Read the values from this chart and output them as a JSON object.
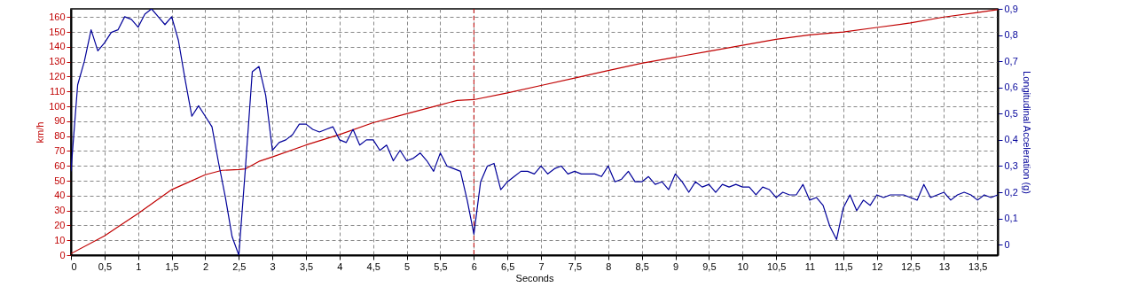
{
  "chart_data": {
    "type": "line",
    "xlabel": "Seconds",
    "ylabel": "km/h",
    "y2label": "Longitudinal Acceleration (g)",
    "grid": true,
    "line_style": "solid",
    "xlim": [
      0,
      13.8
    ],
    "xticks": [
      0,
      {
        "value": 0.5,
        "label": "0,5"
      },
      1,
      {
        "value": 1.5,
        "label": "1,5"
      },
      2,
      {
        "value": 2.5,
        "label": "2,5"
      },
      3,
      {
        "value": 3.5,
        "label": "3,5"
      },
      4,
      {
        "value": 4.5,
        "label": "4,5"
      },
      5,
      {
        "value": 5.5,
        "label": "5,5"
      },
      6,
      {
        "value": 6.5,
        "label": "6,5"
      },
      7,
      {
        "value": 7.5,
        "label": "7,5"
      },
      8,
      {
        "value": 8.5,
        "label": "8,5"
      },
      9,
      {
        "value": 9.5,
        "label": "9,5"
      },
      10,
      {
        "value": 10.5,
        "label": "10,5"
      },
      11,
      {
        "value": 11.5,
        "label": "11,5"
      },
      12,
      {
        "value": 12.5,
        "label": "12,5"
      },
      13,
      {
        "value": 13.5,
        "label": "13,5"
      }
    ],
    "ylim": [
      0,
      165.5
    ],
    "yticks": [
      0,
      10,
      20,
      30,
      40,
      50,
      60,
      70,
      80,
      90,
      100,
      110,
      120,
      130,
      140,
      150,
      160
    ],
    "y2lim": [
      -0.04,
      0.9
    ],
    "y2ticks": [
      0,
      {
        "value": 0.1,
        "label": "0,1"
      },
      {
        "value": 0.2,
        "label": "0,2"
      },
      {
        "value": 0.3,
        "label": "0,3"
      },
      {
        "value": 0.4,
        "label": "0,4"
      },
      {
        "value": 0.5,
        "label": "0,5"
      },
      {
        "value": 0.6,
        "label": "0,6"
      },
      {
        "value": 0.7,
        "label": "0,7"
      },
      {
        "value": 0.8,
        "label": "0,8"
      },
      {
        "value": 0.9,
        "label": "0,9"
      }
    ],
    "ref_lines": [
      {
        "axis": "x",
        "value": 6,
        "label": null,
        "color": "#c00000",
        "line_style": "dashed"
      }
    ],
    "series": [
      {
        "color": "#c00000",
        "x": [
          0,
          0.5,
          1,
          1.5,
          1.7,
          2,
          2.25,
          2.5,
          2.6,
          2.8,
          3,
          3.5,
          4,
          4.5,
          5,
          5.5,
          5.75,
          6,
          6.5,
          7,
          7.5,
          8,
          8.5,
          9,
          9.5,
          10,
          10.5,
          11,
          11.5,
          12,
          12.5,
          13,
          13.5,
          13.8
        ],
        "values": [
          1,
          13,
          28,
          44,
          48,
          54,
          57,
          57.5,
          58,
          63,
          66,
          74,
          81,
          89,
          95,
          101,
          104,
          104.5,
          109,
          114,
          119,
          124,
          129,
          133,
          137,
          141,
          145,
          148,
          150,
          153,
          156,
          160,
          163,
          165
        ]
      },
      {
        "color": "#000099",
        "axis": "y2",
        "x": [
          0,
          0.1,
          0.2,
          0.3,
          0.4,
          0.5,
          0.6,
          0.7,
          0.8,
          0.9,
          1,
          1.1,
          1.2,
          1.3,
          1.4,
          1.5,
          1.6,
          1.7,
          1.8,
          1.9,
          2,
          2.1,
          2.2,
          2.3,
          2.4,
          2.5,
          2.6,
          2.7,
          2.8,
          2.9,
          3,
          3.1,
          3.2,
          3.3,
          3.4,
          3.5,
          3.6,
          3.7,
          3.8,
          3.9,
          4,
          4.1,
          4.2,
          4.3,
          4.4,
          4.5,
          4.6,
          4.7,
          4.8,
          4.9,
          5,
          5.1,
          5.2,
          5.3,
          5.4,
          5.5,
          5.6,
          5.7,
          5.8,
          5.9,
          6,
          6.1,
          6.2,
          6.3,
          6.4,
          6.5,
          6.6,
          6.7,
          6.8,
          6.9,
          7,
          7.1,
          7.2,
          7.3,
          7.4,
          7.5,
          7.6,
          7.7,
          7.8,
          7.9,
          8,
          8.1,
          8.2,
          8.3,
          8.4,
          8.5,
          8.6,
          8.7,
          8.8,
          8.9,
          9,
          9.1,
          9.2,
          9.3,
          9.4,
          9.5,
          9.6,
          9.7,
          9.8,
          9.9,
          10,
          10.1,
          10.2,
          10.3,
          10.4,
          10.5,
          10.6,
          10.7,
          10.8,
          10.9,
          11,
          11.1,
          11.2,
          11.3,
          11.4,
          11.5,
          11.6,
          11.7,
          11.8,
          11.9,
          12,
          12.1,
          12.2,
          12.3,
          12.4,
          12.5,
          12.6,
          12.7,
          12.8,
          12.9,
          13,
          13.1,
          13.2,
          13.3,
          13.4,
          13.5,
          13.6,
          13.7,
          13.8
        ],
        "values": [
          0.28,
          0.61,
          0.7,
          0.82,
          0.74,
          0.77,
          0.81,
          0.82,
          0.87,
          0.86,
          0.83,
          0.88,
          0.9,
          0.87,
          0.84,
          0.87,
          0.78,
          0.63,
          0.49,
          0.53,
          0.49,
          0.45,
          0.31,
          0.18,
          0.03,
          -0.04,
          0.3,
          0.66,
          0.68,
          0.57,
          0.36,
          0.39,
          0.4,
          0.42,
          0.46,
          0.46,
          0.44,
          0.43,
          0.44,
          0.45,
          0.4,
          0.39,
          0.44,
          0.38,
          0.4,
          0.4,
          0.36,
          0.38,
          0.32,
          0.36,
          0.32,
          0.33,
          0.35,
          0.32,
          0.28,
          0.35,
          0.3,
          0.29,
          0.28,
          0.17,
          0.04,
          0.24,
          0.3,
          0.31,
          0.21,
          0.24,
          0.26,
          0.28,
          0.28,
          0.27,
          0.3,
          0.27,
          0.29,
          0.3,
          0.27,
          0.28,
          0.27,
          0.27,
          0.27,
          0.26,
          0.3,
          0.24,
          0.25,
          0.28,
          0.24,
          0.24,
          0.26,
          0.23,
          0.24,
          0.21,
          0.27,
          0.24,
          0.2,
          0.24,
          0.22,
          0.23,
          0.2,
          0.23,
          0.22,
          0.23,
          0.22,
          0.22,
          0.19,
          0.22,
          0.21,
          0.18,
          0.2,
          0.19,
          0.19,
          0.23,
          0.17,
          0.18,
          0.15,
          0.07,
          0.02,
          0.14,
          0.19,
          0.13,
          0.17,
          0.15,
          0.19,
          0.18,
          0.19,
          0.19,
          0.19,
          0.18,
          0.17,
          0.23,
          0.18,
          0.19,
          0.2,
          0.17,
          0.19,
          0.2,
          0.19,
          0.17,
          0.19,
          0.18,
          0.19
        ]
      }
    ]
  }
}
